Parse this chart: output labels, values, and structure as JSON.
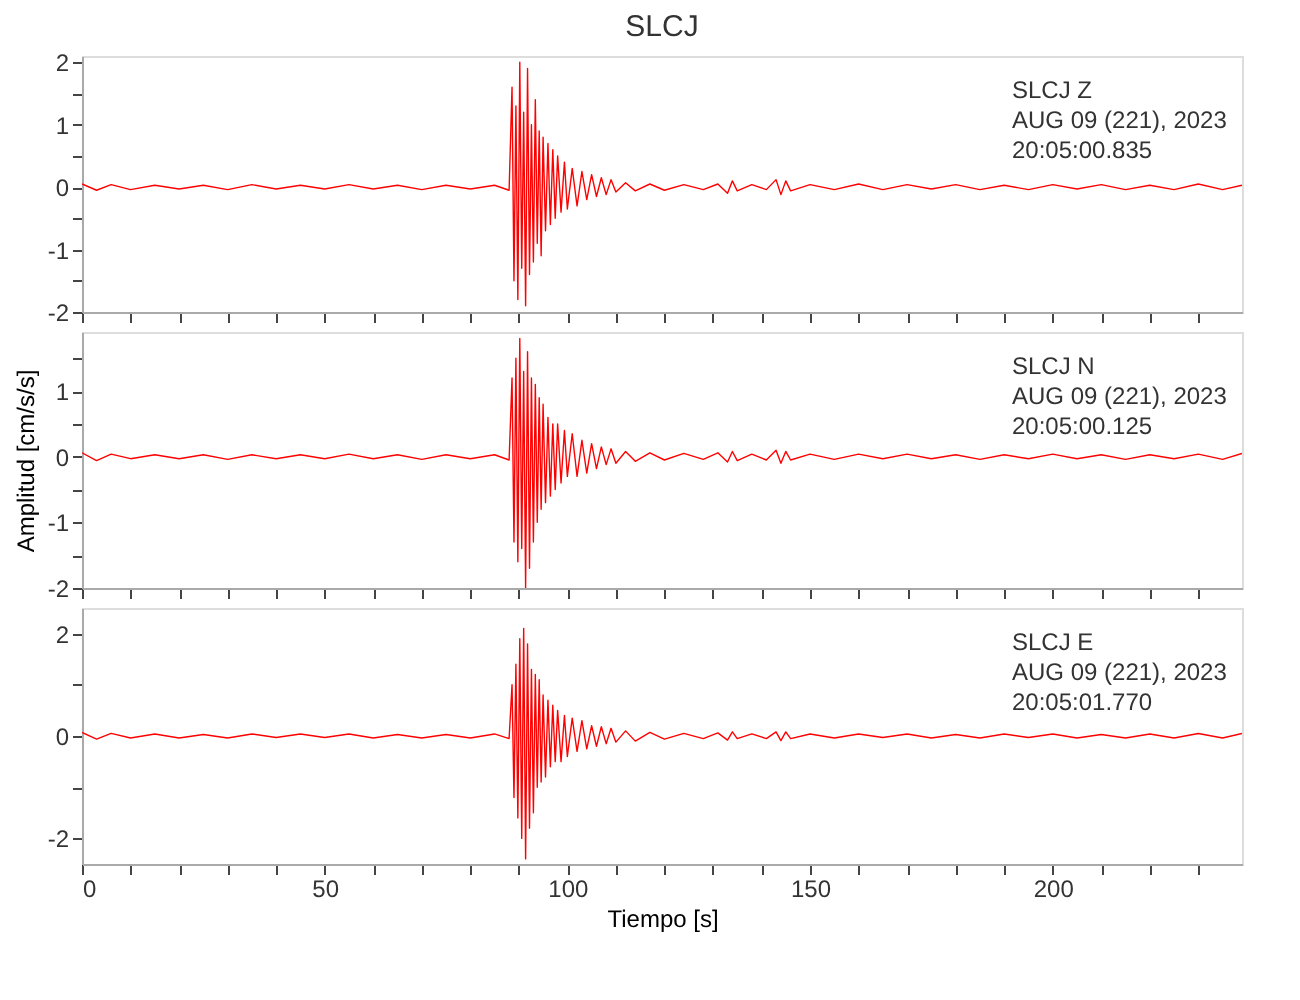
{
  "chart_data": [
    {
      "type": "line",
      "title": "SLCJ",
      "xlim": [
        0,
        239
      ],
      "ylim": [
        -2,
        2.1
      ],
      "tick_labels": "y",
      "xticks": [
        {
          "value": 0,
          "label": null
        },
        {
          "value": 10,
          "label": null
        },
        {
          "value": 20,
          "label": null
        },
        {
          "value": 30,
          "label": null
        },
        {
          "value": 40,
          "label": null
        },
        {
          "value": 50,
          "label": null
        },
        {
          "value": 60,
          "label": null
        },
        {
          "value": 70,
          "label": null
        },
        {
          "value": 80,
          "label": null
        },
        {
          "value": 90,
          "label": null
        },
        {
          "value": 100,
          "label": null
        },
        {
          "value": 110,
          "label": null
        },
        {
          "value": 120,
          "label": null
        },
        {
          "value": 130,
          "label": null
        },
        {
          "value": 140,
          "label": null
        },
        {
          "value": 150,
          "label": null
        },
        {
          "value": 160,
          "label": null
        },
        {
          "value": 170,
          "label": null
        },
        {
          "value": 180,
          "label": null
        },
        {
          "value": 190,
          "label": null
        },
        {
          "value": 200,
          "label": null
        },
        {
          "value": 210,
          "label": null
        },
        {
          "value": 220,
          "label": null
        },
        {
          "value": 230,
          "label": null
        }
      ],
      "yticks": [
        -2,
        {
          "value": -1.5,
          "label": null
        },
        -1,
        {
          "value": -0.5,
          "label": null
        },
        0,
        {
          "value": 0.5,
          "label": null
        },
        1,
        {
          "value": 1.5,
          "label": null
        },
        2
      ],
      "annotations": [
        "SLCJ   Z",
        "AUG 09 (221), 2023",
        "20:05:00.835"
      ],
      "x": [
        0,
        3,
        6,
        10,
        15,
        20,
        25,
        30,
        35,
        40,
        45,
        50,
        55,
        60,
        65,
        70,
        75,
        80,
        85,
        88,
        88.6,
        89.0,
        89.4,
        89.8,
        90.2,
        90.6,
        91.0,
        91.4,
        91.8,
        92.2,
        92.6,
        93.0,
        93.4,
        93.8,
        94.2,
        94.6,
        95.0,
        95.5,
        96,
        96.5,
        97,
        97.5,
        98,
        98.7,
        99.4,
        100,
        101,
        102,
        103,
        104,
        105,
        106,
        107,
        108,
        109,
        110,
        112,
        114,
        117,
        120,
        124,
        128,
        131,
        133,
        134,
        135,
        138,
        141,
        143,
        144,
        145,
        146,
        150,
        155,
        160,
        165,
        170,
        175,
        180,
        185,
        190,
        195,
        200,
        205,
        210,
        215,
        220,
        225,
        230,
        235,
        239
      ],
      "series": [
        {
          "color": "#ff0000",
          "values": [
            0.05,
            -0.05,
            0.04,
            -0.04,
            0.03,
            -0.03,
            0.03,
            -0.04,
            0.04,
            -0.03,
            0.03,
            -0.03,
            0.04,
            -0.03,
            0.03,
            -0.04,
            0.03,
            -0.03,
            0.03,
            -0.05,
            1.6,
            -1.5,
            1.3,
            -1.8,
            2.0,
            -1.3,
            1.2,
            -1.9,
            1.9,
            -1.4,
            1.0,
            -1.2,
            1.4,
            -0.9,
            0.9,
            -1.1,
            0.8,
            -0.7,
            0.7,
            -0.6,
            0.6,
            -0.5,
            0.5,
            -0.4,
            0.4,
            -0.35,
            0.3,
            -0.3,
            0.25,
            -0.2,
            0.2,
            -0.15,
            0.15,
            -0.12,
            0.12,
            -0.08,
            0.07,
            -0.06,
            0.05,
            -0.05,
            0.04,
            -0.04,
            0.05,
            -0.1,
            0.1,
            -0.06,
            0.04,
            -0.04,
            0.12,
            -0.12,
            0.1,
            -0.06,
            0.04,
            -0.04,
            0.05,
            -0.04,
            0.04,
            -0.03,
            0.04,
            -0.04,
            0.03,
            -0.04,
            0.04,
            -0.03,
            0.04,
            -0.04,
            0.03,
            -0.04,
            0.05,
            -0.04,
            0.03
          ]
        }
      ]
    },
    {
      "type": "line",
      "ylabel": "Amplitud [cm/s/s]",
      "xlim": [
        0,
        239
      ],
      "ylim": [
        -2,
        1.9
      ],
      "tick_labels": "y",
      "xticks": [
        {
          "value": 0,
          "label": null
        },
        {
          "value": 10,
          "label": null
        },
        {
          "value": 20,
          "label": null
        },
        {
          "value": 30,
          "label": null
        },
        {
          "value": 40,
          "label": null
        },
        {
          "value": 50,
          "label": null
        },
        {
          "value": 60,
          "label": null
        },
        {
          "value": 70,
          "label": null
        },
        {
          "value": 80,
          "label": null
        },
        {
          "value": 90,
          "label": null
        },
        {
          "value": 100,
          "label": null
        },
        {
          "value": 110,
          "label": null
        },
        {
          "value": 120,
          "label": null
        },
        {
          "value": 130,
          "label": null
        },
        {
          "value": 140,
          "label": null
        },
        {
          "value": 150,
          "label": null
        },
        {
          "value": 160,
          "label": null
        },
        {
          "value": 170,
          "label": null
        },
        {
          "value": 180,
          "label": null
        },
        {
          "value": 190,
          "label": null
        },
        {
          "value": 200,
          "label": null
        },
        {
          "value": 210,
          "label": null
        },
        {
          "value": 220,
          "label": null
        },
        {
          "value": 230,
          "label": null
        }
      ],
      "yticks": [
        -2,
        {
          "value": -1.5,
          "label": null
        },
        -1,
        {
          "value": -0.5,
          "label": null
        },
        0,
        {
          "value": 0.5,
          "label": null
        },
        1,
        {
          "value": 1.5,
          "label": null
        }
      ],
      "annotations": [
        "SLCJ   N",
        "AUG 09 (221), 2023",
        "20:05:00.125"
      ],
      "x": [
        0,
        3,
        6,
        10,
        15,
        20,
        25,
        30,
        35,
        40,
        45,
        50,
        55,
        60,
        65,
        70,
        75,
        80,
        85,
        88,
        88.6,
        89.0,
        89.4,
        89.8,
        90.2,
        90.6,
        91.0,
        91.4,
        91.8,
        92.2,
        92.6,
        93.0,
        93.4,
        93.8,
        94.2,
        94.6,
        95.0,
        95.5,
        96,
        96.5,
        97,
        97.5,
        98,
        98.7,
        99.4,
        100,
        101,
        102,
        103,
        104,
        105,
        106,
        107,
        108,
        109,
        110,
        112,
        114,
        117,
        120,
        124,
        128,
        131,
        133,
        134,
        135,
        138,
        141,
        143,
        144,
        145,
        146,
        150,
        155,
        160,
        165,
        170,
        175,
        180,
        185,
        190,
        195,
        200,
        205,
        210,
        215,
        220,
        225,
        230,
        235,
        239
      ],
      "series": [
        {
          "color": "#ff0000",
          "values": [
            0.06,
            -0.06,
            0.04,
            -0.03,
            0.03,
            -0.03,
            0.03,
            -0.04,
            0.03,
            -0.03,
            0.03,
            -0.03,
            0.04,
            -0.03,
            0.03,
            -0.04,
            0.03,
            -0.03,
            0.03,
            -0.05,
            1.2,
            -1.3,
            1.5,
            -1.6,
            1.8,
            -1.4,
            1.3,
            -2.0,
            1.6,
            -1.7,
            1.2,
            -1.3,
            1.1,
            -1.0,
            0.9,
            -0.8,
            0.8,
            -0.7,
            0.6,
            -0.6,
            0.5,
            -0.5,
            0.5,
            -0.4,
            0.4,
            -0.3,
            0.35,
            -0.3,
            0.25,
            -0.25,
            0.2,
            -0.18,
            0.15,
            -0.12,
            0.12,
            -0.1,
            0.08,
            -0.07,
            0.06,
            -0.05,
            0.05,
            -0.04,
            0.06,
            -0.08,
            0.08,
            -0.06,
            0.04,
            -0.05,
            0.1,
            -0.1,
            0.08,
            -0.05,
            0.04,
            -0.04,
            0.04,
            -0.03,
            0.04,
            -0.03,
            0.03,
            -0.04,
            0.03,
            -0.03,
            0.04,
            -0.03,
            0.03,
            -0.04,
            0.03,
            -0.03,
            0.04,
            -0.04,
            0.05
          ]
        }
      ]
    },
    {
      "type": "line",
      "xlabel": "Tiempo [s]",
      "xlim": [
        0,
        239
      ],
      "ylim": [
        -2.5,
        2.5
      ],
      "xticks": [
        0,
        {
          "value": 10,
          "label": null
        },
        {
          "value": 20,
          "label": null
        },
        {
          "value": 30,
          "label": null
        },
        {
          "value": 40,
          "label": null
        },
        50,
        {
          "value": 60,
          "label": null
        },
        {
          "value": 70,
          "label": null
        },
        {
          "value": 80,
          "label": null
        },
        {
          "value": 90,
          "label": null
        },
        100,
        {
          "value": 110,
          "label": null
        },
        {
          "value": 120,
          "label": null
        },
        {
          "value": 130,
          "label": null
        },
        {
          "value": 140,
          "label": null
        },
        150,
        {
          "value": 160,
          "label": null
        },
        {
          "value": 170,
          "label": null
        },
        {
          "value": 180,
          "label": null
        },
        {
          "value": 190,
          "label": null
        },
        200,
        {
          "value": 210,
          "label": null
        },
        {
          "value": 220,
          "label": null
        },
        {
          "value": 230,
          "label": null
        }
      ],
      "yticks": [
        -2,
        {
          "value": -1,
          "label": null
        },
        0,
        {
          "value": 1,
          "label": null
        },
        2
      ],
      "annotations": [
        "SLCJ   E",
        "AUG 09 (221), 2023",
        "20:05:01.770"
      ],
      "x": [
        0,
        3,
        6,
        10,
        15,
        20,
        25,
        30,
        35,
        40,
        45,
        50,
        55,
        60,
        65,
        70,
        75,
        80,
        85,
        88,
        88.6,
        89.0,
        89.4,
        89.8,
        90.2,
        90.6,
        91.0,
        91.4,
        91.8,
        92.2,
        92.6,
        93.0,
        93.4,
        93.8,
        94.2,
        94.6,
        95.0,
        95.5,
        96,
        96.5,
        97,
        97.5,
        98,
        98.7,
        99.4,
        100,
        101,
        102,
        103,
        104,
        105,
        106,
        107,
        108,
        109,
        110,
        112,
        114,
        117,
        120,
        124,
        128,
        131,
        133,
        134,
        135,
        138,
        141,
        143,
        144,
        145,
        146,
        150,
        155,
        160,
        165,
        170,
        175,
        180,
        185,
        190,
        195,
        200,
        205,
        210,
        215,
        220,
        225,
        230,
        235,
        239
      ],
      "series": [
        {
          "color": "#ff0000",
          "values": [
            0.07,
            -0.06,
            0.05,
            -0.04,
            0.04,
            -0.04,
            0.03,
            -0.04,
            0.04,
            -0.03,
            0.04,
            -0.03,
            0.04,
            -0.04,
            0.03,
            -0.04,
            0.03,
            -0.04,
            0.04,
            -0.05,
            1.0,
            -1.2,
            1.4,
            -1.6,
            1.9,
            -2.0,
            2.1,
            -2.4,
            1.8,
            -1.8,
            1.3,
            -1.5,
            1.2,
            -1.0,
            1.1,
            -0.9,
            0.8,
            -0.8,
            0.7,
            -0.6,
            0.6,
            -0.5,
            0.5,
            -0.5,
            0.4,
            -0.4,
            0.35,
            -0.3,
            0.3,
            -0.25,
            0.2,
            -0.2,
            0.18,
            -0.15,
            0.15,
            -0.12,
            0.1,
            -0.1,
            0.07,
            -0.06,
            0.05,
            -0.05,
            0.06,
            -0.08,
            0.08,
            -0.05,
            0.04,
            -0.05,
            0.08,
            -0.09,
            0.08,
            -0.05,
            0.04,
            -0.04,
            0.04,
            -0.03,
            0.04,
            -0.04,
            0.03,
            -0.04,
            0.04,
            -0.03,
            0.04,
            -0.04,
            0.03,
            -0.04,
            0.04,
            -0.04,
            0.05,
            -0.04,
            0.05
          ]
        }
      ]
    }
  ]
}
